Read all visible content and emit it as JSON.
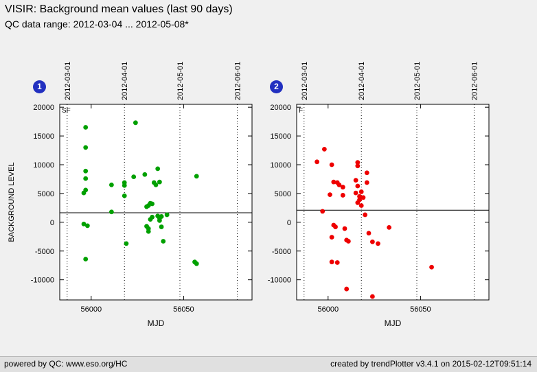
{
  "header": {
    "title": "VISIR: Background mean values (last 90 days)",
    "subtitle": "QC data range: 2012-03-04 ... 2012-05-08*"
  },
  "footer": {
    "left": "powered by QC: www.eso.org/HC",
    "right": "created by trendPlotter v3.4.1 on 2015-02-12T09:51:14"
  },
  "chart_data": [
    {
      "type": "scatter",
      "badge": "1",
      "inner_label": "SF",
      "point_color": "#00a000",
      "xlabel": "MJD",
      "ylabel": "BACKGROUND LEVEL",
      "xlim": [
        55983,
        56087
      ],
      "ylim": [
        -13500,
        20500
      ],
      "x_ticks": [
        56000,
        56050
      ],
      "y_ticks": [
        20000,
        15000,
        10000,
        5000,
        0,
        -5000,
        -10000
      ],
      "top_ticks": [
        {
          "label": "2012-03-01",
          "x": 55987
        },
        {
          "label": "2012-04-01",
          "x": 56018
        },
        {
          "label": "2012-05-01",
          "x": 56048
        },
        {
          "label": "2012-06-01",
          "x": 56079
        }
      ],
      "mean_line": 1650,
      "points": [
        [
          55997,
          16500
        ],
        [
          55997,
          13000
        ],
        [
          55997,
          8900
        ],
        [
          55997,
          7600
        ],
        [
          55997,
          5600
        ],
        [
          55996,
          5100
        ],
        [
          55996,
          -300
        ],
        [
          55998,
          -600
        ],
        [
          55997,
          -6400
        ],
        [
          56011,
          6500
        ],
        [
          56011,
          1800
        ],
        [
          56018,
          6900
        ],
        [
          56018,
          6400
        ],
        [
          56018,
          4600
        ],
        [
          56019,
          -3700
        ],
        [
          56024,
          17300
        ],
        [
          56023,
          7900
        ],
        [
          56029,
          8300
        ],
        [
          56030,
          2700
        ],
        [
          56031,
          2900
        ],
        [
          56032,
          3300
        ],
        [
          56033,
          3200
        ],
        [
          56030,
          -700
        ],
        [
          56031,
          -1100
        ],
        [
          56031,
          -1600
        ],
        [
          56032,
          500
        ],
        [
          56033,
          900
        ],
        [
          56034,
          6900
        ],
        [
          56035,
          6500
        ],
        [
          56036,
          9300
        ],
        [
          56037,
          7000
        ],
        [
          56036,
          1100
        ],
        [
          56037,
          700
        ],
        [
          56037,
          300
        ],
        [
          56038,
          1000
        ],
        [
          56038,
          -800
        ],
        [
          56039,
          -3300
        ],
        [
          56041,
          1300
        ],
        [
          56057,
          8000
        ],
        [
          56056,
          -6900
        ],
        [
          56057,
          -7200
        ]
      ]
    },
    {
      "type": "scatter",
      "badge": "2",
      "inner_label": "F",
      "point_color": "#ee0000",
      "xlabel": "MJD",
      "ylabel": "",
      "xlim": [
        55983,
        56087
      ],
      "ylim": [
        -13500,
        20500
      ],
      "x_ticks": [
        56000,
        56050
      ],
      "y_ticks": [
        20000,
        15000,
        10000,
        5000,
        0,
        -5000,
        -10000
      ],
      "top_ticks": [
        {
          "label": "2012-03-01",
          "x": 55987
        },
        {
          "label": "2012-04-01",
          "x": 56018
        },
        {
          "label": "2012-05-01",
          "x": 56048
        },
        {
          "label": "2012-06-01",
          "x": 56079
        }
      ],
      "mean_line": 2100,
      "points": [
        [
          55994,
          10500
        ],
        [
          55998,
          12700
        ],
        [
          55997,
          1900
        ],
        [
          56002,
          10000
        ],
        [
          56003,
          7000
        ],
        [
          56001,
          4800
        ],
        [
          56005,
          6900
        ],
        [
          56006,
          6500
        ],
        [
          56002,
          -2600
        ],
        [
          56003,
          -500
        ],
        [
          56004,
          -800
        ],
        [
          56002,
          -6900
        ],
        [
          56005,
          -7000
        ],
        [
          56008,
          6100
        ],
        [
          56008,
          4700
        ],
        [
          56009,
          -1100
        ],
        [
          56010,
          -3100
        ],
        [
          56011,
          -3300
        ],
        [
          56010,
          -11600
        ],
        [
          56016,
          10400
        ],
        [
          56016,
          9800
        ],
        [
          56015,
          7300
        ],
        [
          56016,
          6300
        ],
        [
          56015,
          5100
        ],
        [
          56017,
          4500
        ],
        [
          56017,
          3900
        ],
        [
          56016,
          3400
        ],
        [
          56018,
          2900
        ],
        [
          56018,
          5300
        ],
        [
          56019,
          4300
        ],
        [
          56021,
          8600
        ],
        [
          56021,
          6900
        ],
        [
          56020,
          1300
        ],
        [
          56022,
          -1900
        ],
        [
          56024,
          -3400
        ],
        [
          56024,
          -12900
        ],
        [
          56027,
          -3700
        ],
        [
          56033,
          -900
        ],
        [
          56056,
          -7800
        ]
      ]
    }
  ]
}
